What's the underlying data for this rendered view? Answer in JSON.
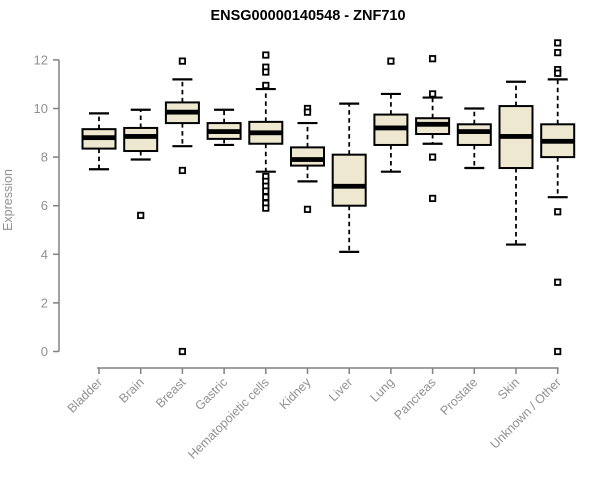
{
  "chart_data": {
    "type": "boxplot",
    "title": "ENSG00000140548 - ZNF710",
    "xlabel": "",
    "ylabel": "Expression",
    "ylim": [
      0,
      12
    ],
    "yticks": [
      0,
      2,
      4,
      6,
      8,
      10,
      12
    ],
    "grid": false,
    "legend": null,
    "box_fill_color": "#EFE8D1",
    "box_stroke_color": "#000000",
    "median_color": "#000000",
    "outlier_color": "#000000",
    "axis_color": "#828282",
    "label_color": "#919191",
    "title_color": "#000000",
    "categories": [
      "Bladder",
      "Brain",
      "Breast",
      "Gastric",
      "Hematopoietic cells",
      "Kidney",
      "Liver",
      "Lung",
      "Pancreas",
      "Prostate",
      "Skin",
      "Unknown / Other"
    ],
    "series": [
      {
        "name": "Bladder",
        "whisker_low": 7.5,
        "q1": 8.35,
        "median": 8.8,
        "q3": 9.15,
        "whisker_high": 9.8,
        "outliers": []
      },
      {
        "name": "Brain",
        "whisker_low": 7.9,
        "q1": 8.25,
        "median": 8.85,
        "q3": 9.2,
        "whisker_high": 9.95,
        "outliers": [
          5.6
        ]
      },
      {
        "name": "Breast",
        "whisker_low": 8.45,
        "q1": 9.4,
        "median": 9.85,
        "q3": 10.25,
        "whisker_high": 11.2,
        "outliers": [
          11.95,
          7.45,
          0
        ]
      },
      {
        "name": "Gastric",
        "whisker_low": 8.5,
        "q1": 8.75,
        "median": 9.05,
        "q3": 9.4,
        "whisker_high": 9.95,
        "outliers": []
      },
      {
        "name": "Hematopoietic cells",
        "whisker_low": 7.4,
        "q1": 8.55,
        "median": 9.0,
        "q3": 9.45,
        "whisker_high": 10.8,
        "outliers": [
          12.2,
          11.7,
          11.5,
          10.95,
          7.2,
          7.0,
          6.8,
          6.6,
          6.35,
          6.1,
          5.9
        ]
      },
      {
        "name": "Kidney",
        "whisker_low": 7.0,
        "q1": 7.65,
        "median": 7.9,
        "q3": 8.4,
        "whisker_high": 9.4,
        "outliers": [
          10.0,
          9.85,
          5.85
        ]
      },
      {
        "name": "Liver",
        "whisker_low": 4.1,
        "q1": 6.0,
        "median": 6.8,
        "q3": 8.1,
        "whisker_high": 10.2,
        "outliers": []
      },
      {
        "name": "Lung",
        "whisker_low": 7.4,
        "q1": 8.5,
        "median": 9.2,
        "q3": 9.75,
        "whisker_high": 10.6,
        "outliers": [
          11.95
        ]
      },
      {
        "name": "Pancreas",
        "whisker_low": 8.55,
        "q1": 8.95,
        "median": 9.35,
        "q3": 9.6,
        "whisker_high": 10.45,
        "outliers": [
          12.05,
          10.6,
          8.0,
          6.3
        ]
      },
      {
        "name": "Prostate",
        "whisker_low": 7.55,
        "q1": 8.5,
        "median": 9.05,
        "q3": 9.35,
        "whisker_high": 10.0,
        "outliers": []
      },
      {
        "name": "Skin",
        "whisker_low": 4.4,
        "q1": 7.55,
        "median": 8.85,
        "q3": 10.1,
        "whisker_high": 11.1,
        "outliers": []
      },
      {
        "name": "Unknown / Other",
        "whisker_low": 6.35,
        "q1": 8.0,
        "median": 8.65,
        "q3": 9.35,
        "whisker_high": 11.2,
        "outliers": [
          12.7,
          12.3,
          11.6,
          11.45,
          5.75,
          2.85,
          0
        ]
      }
    ]
  }
}
